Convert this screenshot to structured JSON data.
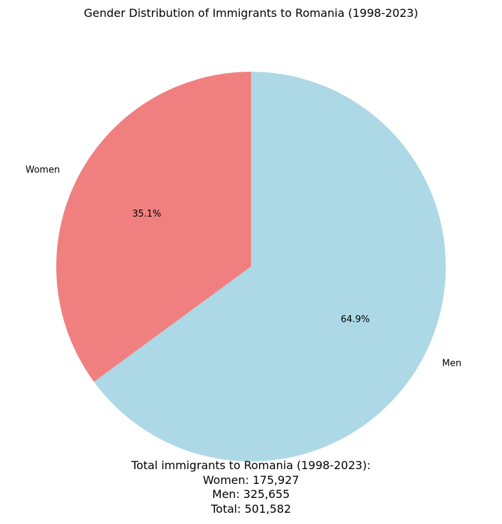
{
  "chart_data": {
    "type": "pie",
    "title": "Gender Distribution of Immigrants to Romania (1998-2023)",
    "slices": [
      {
        "label": "Women",
        "value": 175927,
        "percent_label": "35.1%",
        "color": "#f08080"
      },
      {
        "label": "Men",
        "value": 325655,
        "percent_label": "64.9%",
        "color": "#add8e6"
      }
    ],
    "start_angle_deg": 90,
    "direction": "counterclockwise"
  },
  "summary": {
    "heading": "Total immigrants to Romania (1998-2023):",
    "women_line": "Women: 175,927",
    "men_line": "Men: 325,655",
    "total_line": "Total: 501,582"
  }
}
